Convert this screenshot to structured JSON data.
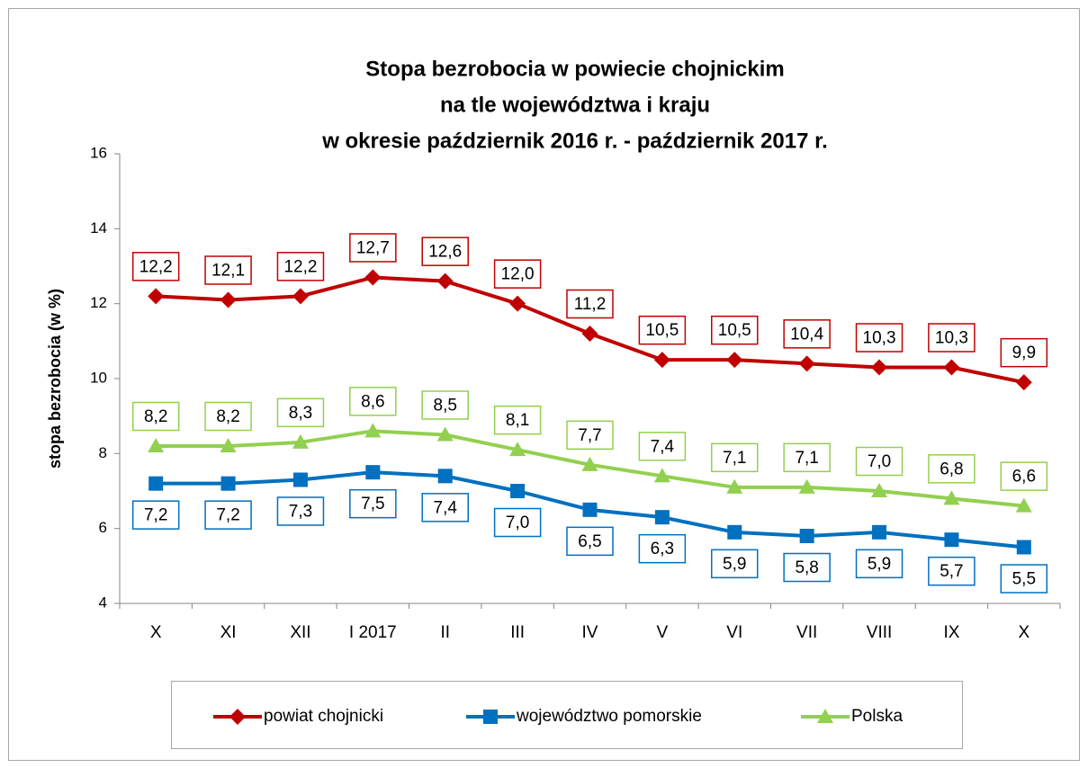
{
  "chart_data": {
    "type": "line",
    "title": [
      "Stopa bezrobocia w powiecie chojnickim",
      "na tle województwa i kraju",
      "w okresie październik 2016 r. - październik 2017 r."
    ],
    "y_label": "stopa bezrobocia (w %)",
    "categories": [
      "X",
      "XI",
      "XII",
      "I 2017",
      "II",
      "III",
      "IV",
      "V",
      "VI",
      "VII",
      "VIII",
      "IX",
      "X"
    ],
    "ylim": [
      4,
      16
    ],
    "yticks": [
      4,
      6,
      8,
      10,
      12,
      14,
      16
    ],
    "grid": false,
    "legend": "bottom",
    "series": [
      {
        "name": "powiat chojnicki",
        "color": "#c00000",
        "marker": "diamond",
        "values": [
          12.2,
          12.1,
          12.2,
          12.7,
          12.6,
          12.0,
          11.2,
          10.5,
          10.5,
          10.4,
          10.3,
          10.3,
          9.9
        ],
        "value_labels": [
          "12,2",
          "12,1",
          "12,2",
          "12,7",
          "12,6",
          "12,0",
          "11,2",
          "10,5",
          "10,5",
          "10,4",
          "10,3",
          "10,3",
          "9,9"
        ]
      },
      {
        "name": "województwo pomorskie",
        "color": "#0070c0",
        "marker": "square",
        "values": [
          7.2,
          7.2,
          7.3,
          7.5,
          7.4,
          7.0,
          6.5,
          6.3,
          5.9,
          5.8,
          5.9,
          5.7,
          5.5
        ],
        "value_labels": [
          "7,2",
          "7,2",
          "7,3",
          "7,5",
          "7,4",
          "7,0",
          "6,5",
          "6,3",
          "5,9",
          "5,8",
          "5,9",
          "5,7",
          "5,5"
        ]
      },
      {
        "name": "Polska",
        "color": "#92d050",
        "marker": "triangle",
        "values": [
          8.2,
          8.2,
          8.3,
          8.6,
          8.5,
          8.1,
          7.7,
          7.4,
          7.1,
          7.1,
          7.0,
          6.8,
          6.6
        ],
        "value_labels": [
          "8,2",
          "8,2",
          "8,3",
          "8,6",
          "8,5",
          "8,1",
          "7,7",
          "7,4",
          "7,1",
          "7,1",
          "7,0",
          "6,8",
          "6,6"
        ]
      }
    ]
  }
}
